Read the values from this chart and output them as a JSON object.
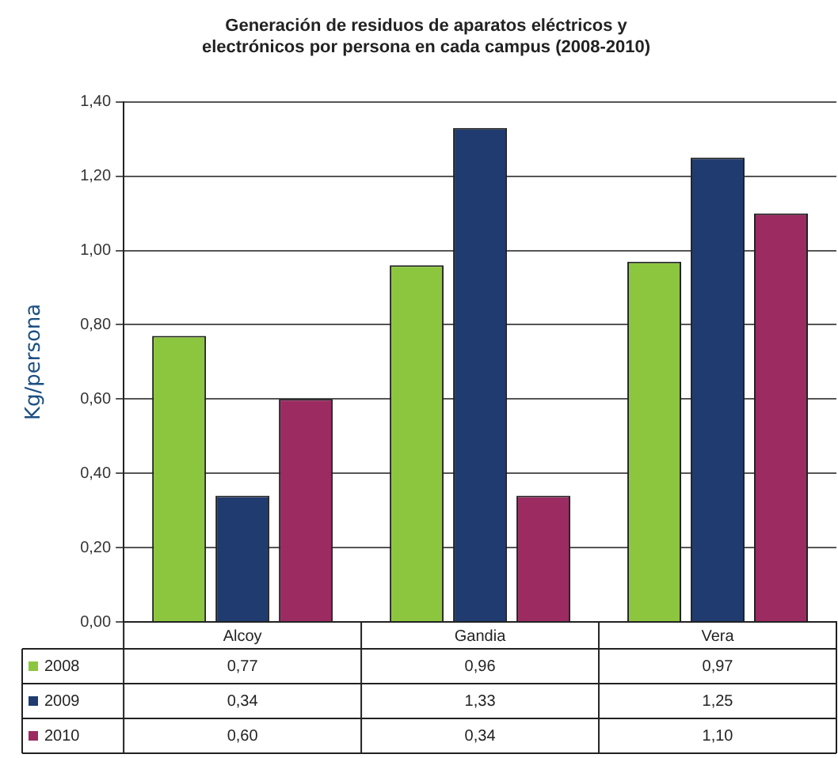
{
  "chart_data": {
    "type": "bar",
    "title": [
      "Generación de residuos de aparatos eléctricos y",
      "electrónicos por persona en cada campus (2008-2010)"
    ],
    "ylabel": "Kg/persona",
    "categories": [
      "Alcoy",
      "Gandia",
      "Vera"
    ],
    "series": [
      {
        "name": "2008",
        "color": "#8cc63e",
        "values": [
          0.77,
          0.96,
          0.97
        ],
        "value_labels": [
          "0,77",
          "0,96",
          "0,97"
        ]
      },
      {
        "name": "2009",
        "color": "#1f3b70",
        "values": [
          0.34,
          1.33,
          1.25
        ],
        "value_labels": [
          "0,34",
          "1,33",
          "1,25"
        ]
      },
      {
        "name": "2010",
        "color": "#9c2b62",
        "values": [
          0.6,
          0.34,
          1.1
        ],
        "value_labels": [
          "0,60",
          "0,34",
          "1,10"
        ]
      }
    ],
    "ylim": [
      0,
      1.4
    ],
    "yticks": [
      {
        "value": 0,
        "label": "0,00"
      },
      {
        "value": 0.2,
        "label": "0,20"
      },
      {
        "value": 0.4,
        "label": "0,40"
      },
      {
        "value": 0.6,
        "label": "0,60"
      },
      {
        "value": 0.8,
        "label": "0,80"
      },
      {
        "value": 1,
        "label": "1,00"
      },
      {
        "value": 1.2,
        "label": "1,20"
      },
      {
        "value": 1.4,
        "label": "1,40"
      }
    ],
    "grid": "y",
    "legend": "bottom left"
  }
}
